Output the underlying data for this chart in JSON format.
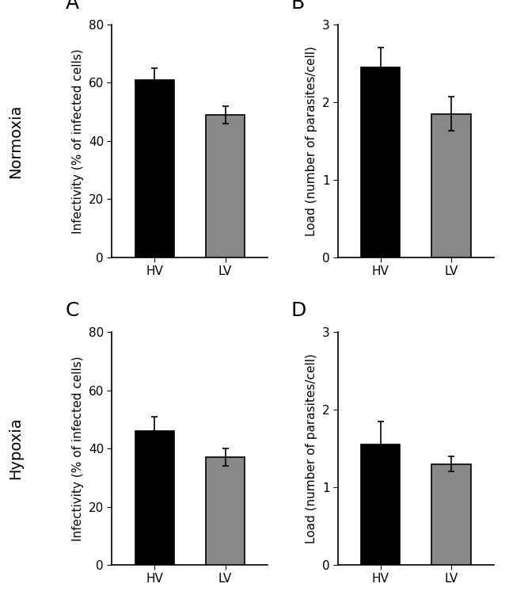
{
  "panels": [
    {
      "label": "A",
      "categories": [
        "HV",
        "LV"
      ],
      "values": [
        61.0,
        49.0
      ],
      "errors": [
        4.0,
        3.0
      ],
      "colors": [
        "#000000",
        "#888888"
      ],
      "ylabel": "Infectivity (% of infected cells)",
      "ylim": [
        0,
        80
      ],
      "yticks": [
        0,
        20,
        40,
        60,
        80
      ],
      "row_label": "Normoxia"
    },
    {
      "label": "B",
      "categories": [
        "HV",
        "LV"
      ],
      "values": [
        2.45,
        1.85
      ],
      "errors": [
        0.25,
        0.22
      ],
      "colors": [
        "#000000",
        "#888888"
      ],
      "ylabel": "Load (number of parasites/cell)",
      "ylim": [
        0,
        3
      ],
      "yticks": [
        0,
        1,
        2,
        3
      ],
      "row_label": null
    },
    {
      "label": "C",
      "categories": [
        "HV",
        "LV"
      ],
      "values": [
        46.0,
        37.0
      ],
      "errors": [
        5.0,
        3.0
      ],
      "colors": [
        "#000000",
        "#888888"
      ],
      "ylabel": "Infectivity (% of infected cells)",
      "ylim": [
        0,
        80
      ],
      "yticks": [
        0,
        20,
        40,
        60,
        80
      ],
      "row_label": "Hypoxia"
    },
    {
      "label": "D",
      "categories": [
        "HV",
        "LV"
      ],
      "values": [
        1.55,
        1.3
      ],
      "errors": [
        0.3,
        0.1
      ],
      "colors": [
        "#000000",
        "#888888"
      ],
      "ylabel": "Load (number of parasites/cell)",
      "ylim": [
        0,
        3
      ],
      "yticks": [
        0,
        1,
        2,
        3
      ],
      "row_label": null
    }
  ],
  "background_color": "#ffffff",
  "bar_width": 0.55,
  "capsize": 3,
  "label_fontsize": 18,
  "tick_fontsize": 11,
  "ylabel_fontsize": 11,
  "row_label_fontsize": 14
}
